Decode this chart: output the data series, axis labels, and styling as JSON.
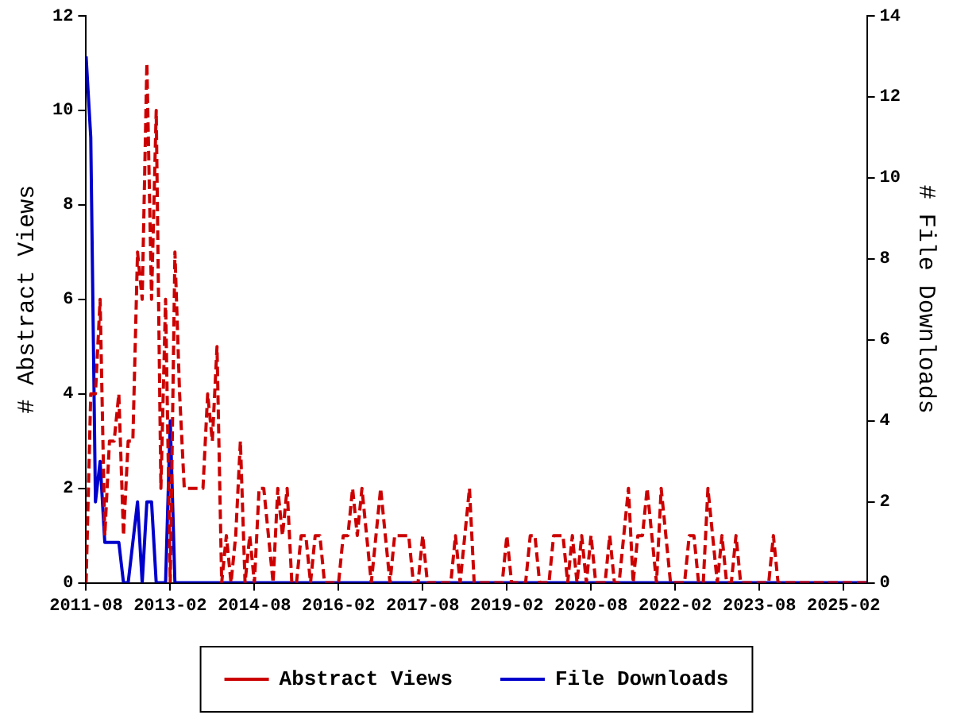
{
  "chart_data": {
    "type": "line",
    "ylabel": "# Abstract Views",
    "y2label": "# File Downloads",
    "x": [
      "2011-08",
      "2011-09",
      "2011-10",
      "2011-11",
      "2011-12",
      "2012-01",
      "2012-02",
      "2012-03",
      "2012-04",
      "2012-05",
      "2012-06",
      "2012-07",
      "2012-08",
      "2012-09",
      "2012-10",
      "2012-11",
      "2012-12",
      "2013-01",
      "2013-02",
      "2013-03",
      "2013-04",
      "2013-05",
      "2013-06",
      "2013-07",
      "2013-08",
      "2013-09",
      "2013-10",
      "2013-11",
      "2013-12",
      "2014-01",
      "2014-02",
      "2014-03",
      "2014-04",
      "2014-05",
      "2014-06",
      "2014-07",
      "2014-08",
      "2014-09",
      "2014-10",
      "2014-11",
      "2014-12",
      "2015-01",
      "2015-02",
      "2015-03",
      "2015-04",
      "2015-05",
      "2015-06",
      "2015-07",
      "2015-08",
      "2015-09",
      "2015-10",
      "2015-11",
      "2015-12",
      "2016-01",
      "2016-02",
      "2016-03",
      "2016-04",
      "2016-05",
      "2016-06",
      "2016-07",
      "2016-08",
      "2016-09",
      "2016-10",
      "2016-11",
      "2016-12",
      "2017-01",
      "2017-02",
      "2017-03",
      "2017-04",
      "2017-05",
      "2017-06",
      "2017-07",
      "2017-08",
      "2017-09",
      "2017-10",
      "2017-11",
      "2017-12",
      "2018-01",
      "2018-02",
      "2018-03",
      "2018-04",
      "2018-05",
      "2018-06",
      "2018-07",
      "2018-08",
      "2018-09",
      "2018-10",
      "2018-11",
      "2018-12",
      "2019-01",
      "2019-02",
      "2019-03",
      "2019-04",
      "2019-05",
      "2019-06",
      "2019-07",
      "2019-08",
      "2019-09",
      "2019-10",
      "2019-11",
      "2019-12",
      "2020-01",
      "2020-02",
      "2020-03",
      "2020-04",
      "2020-05",
      "2020-06",
      "2020-07",
      "2020-08",
      "2020-09",
      "2020-10",
      "2020-11",
      "2020-12",
      "2021-01",
      "2021-02",
      "2021-03",
      "2021-04",
      "2021-05",
      "2021-06",
      "2021-07",
      "2021-08",
      "2021-09",
      "2021-10",
      "2021-11",
      "2021-12",
      "2022-01",
      "2022-02",
      "2022-03",
      "2022-04",
      "2022-05",
      "2022-06",
      "2022-07",
      "2022-08",
      "2022-09",
      "2022-10",
      "2022-11",
      "2022-12",
      "2023-01",
      "2023-02",
      "2023-03",
      "2023-04",
      "2023-05",
      "2023-06",
      "2023-07",
      "2023-08",
      "2023-09",
      "2023-10",
      "2023-11",
      "2023-12",
      "2024-01",
      "2024-02",
      "2024-03",
      "2024-04",
      "2024-05",
      "2024-06",
      "2024-07",
      "2024-08",
      "2024-09",
      "2024-10",
      "2024-11",
      "2024-12",
      "2025-01",
      "2025-02",
      "2025-03",
      "2025-04",
      "2025-05",
      "2025-06",
      "2025-07"
    ],
    "series": [
      {
        "name": "Abstract Views",
        "color": "#cc0000",
        "line_style": "dashed",
        "values": [
          0,
          4,
          4,
          6,
          1,
          3,
          3,
          4,
          1,
          3,
          3,
          7,
          6,
          11,
          6,
          10,
          2,
          6,
          0,
          7,
          4,
          2,
          2,
          2,
          2,
          2,
          4,
          3,
          5,
          0,
          1,
          0,
          1,
          3,
          0,
          1,
          0,
          2,
          2,
          1,
          0,
          2,
          1,
          2,
          0,
          0,
          1,
          1,
          0,
          1,
          1,
          0,
          0,
          0,
          0,
          1,
          1,
          2,
          1,
          2,
          1,
          0,
          1,
          2,
          1,
          0,
          1,
          1,
          1,
          1,
          0,
          0,
          1,
          0,
          0,
          0,
          0,
          0,
          0,
          1,
          0,
          1,
          2,
          0,
          0,
          0,
          0,
          0,
          0,
          0,
          1,
          0,
          0,
          0,
          0,
          1,
          1,
          0,
          0,
          0,
          1,
          1,
          1,
          0,
          1,
          0,
          1,
          0,
          1,
          0,
          0,
          0,
          1,
          0,
          0,
          1,
          2,
          0,
          1,
          1,
          2,
          1,
          0,
          2,
          1,
          0,
          0,
          0,
          0,
          1,
          1,
          0,
          0,
          2,
          1,
          0,
          1,
          0,
          0,
          1,
          0,
          0,
          0,
          0,
          0,
          0,
          0,
          1,
          0,
          0,
          0,
          0,
          0,
          0,
          0,
          0,
          0,
          0,
          0,
          0,
          0,
          0,
          0,
          0,
          0,
          0,
          0,
          0
        ]
      },
      {
        "name": "File Downloads",
        "color": "#0000cc",
        "line_style": "solid",
        "axis": "y2",
        "values": [
          13,
          11,
          2,
          3,
          1,
          1,
          1,
          1,
          0,
          0,
          1,
          2,
          0,
          2,
          2,
          0,
          0,
          0,
          4,
          0,
          0,
          0,
          0,
          0,
          0,
          0,
          0,
          0,
          0,
          0,
          0,
          0,
          0,
          0,
          0,
          0,
          0,
          0,
          0,
          0,
          0,
          0,
          0,
          0,
          0,
          0,
          0,
          0,
          0,
          0,
          0,
          0,
          0,
          0,
          0,
          0,
          0,
          0,
          0,
          0,
          0,
          0,
          0,
          0,
          0,
          0,
          0,
          0,
          0,
          0,
          0,
          0,
          0,
          0,
          0,
          0,
          0,
          0,
          0,
          0,
          0,
          0,
          0,
          0,
          0,
          0,
          0,
          0,
          0,
          0,
          0,
          0,
          0,
          0,
          0,
          0,
          0,
          0,
          0,
          0,
          0,
          0,
          0,
          0,
          0,
          0,
          0,
          0,
          0,
          0,
          0,
          0,
          0,
          0,
          0,
          0,
          0,
          0,
          0,
          0,
          0,
          0,
          0,
          0,
          0,
          0,
          0,
          0,
          0,
          0,
          0,
          0,
          0,
          0,
          0,
          0,
          0,
          0,
          0,
          0,
          0,
          0,
          0,
          0,
          0,
          0,
          0,
          0,
          0,
          0,
          0,
          0,
          0,
          0,
          0,
          0,
          0,
          0,
          0,
          0,
          0,
          0,
          0,
          0,
          0,
          0,
          0,
          0
        ]
      }
    ],
    "xlim": [
      "2011-08",
      "2025-07"
    ],
    "xticks": [
      "2011-08",
      "2013-02",
      "2014-08",
      "2016-02",
      "2017-08",
      "2019-02",
      "2020-08",
      "2022-02",
      "2023-08",
      "2025-02"
    ],
    "ylim": [
      0,
      12
    ],
    "yticks": [
      0,
      2,
      4,
      6,
      8,
      10,
      12
    ],
    "y2lim": [
      0,
      14
    ],
    "y2ticks": [
      0,
      2,
      4,
      6,
      8,
      10,
      12,
      14
    ],
    "grid": false,
    "legend": "bottom",
    "marker": "none"
  }
}
